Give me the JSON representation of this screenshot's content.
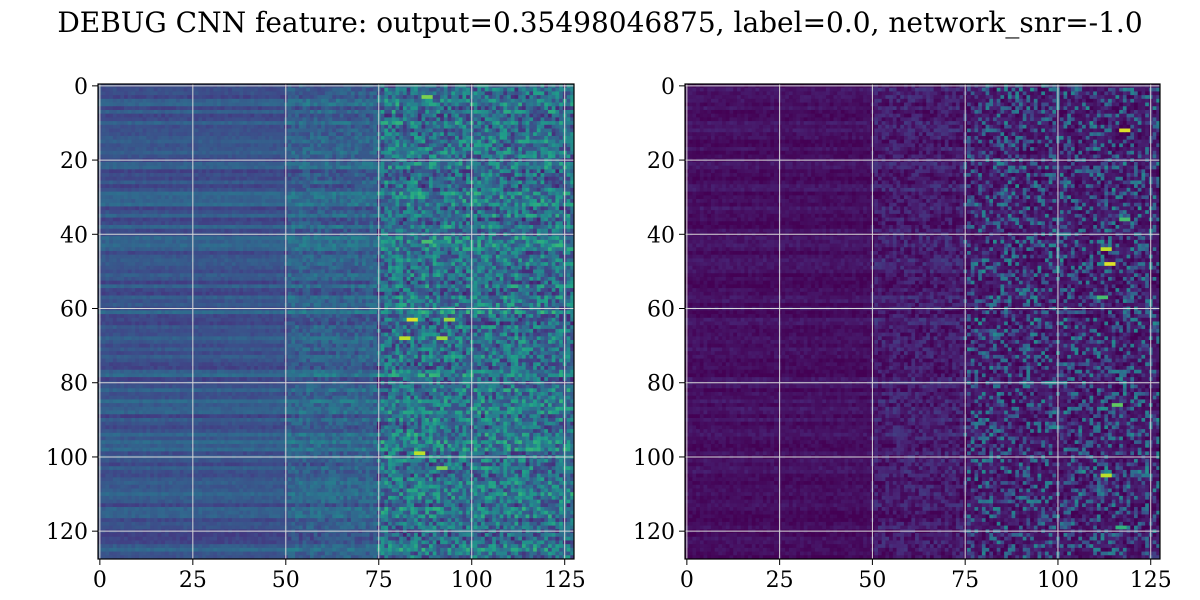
{
  "figure": {
    "title": "DEBUG CNN feature: output=0.35498046875, label=0.0, network_snr=-1.0"
  },
  "chart_data": [
    {
      "type": "heatmap",
      "colormap": "viridis",
      "rows": 128,
      "cols": 128,
      "xlim": [
        0,
        127
      ],
      "ylim": [
        127,
        0
      ],
      "y_axis_inverted": true,
      "xticks": [
        0,
        25,
        50,
        75,
        100,
        125
      ],
      "xtick_labels": [
        "0",
        "25",
        "50",
        "75",
        "100",
        "125"
      ],
      "yticks": [
        0,
        20,
        40,
        60,
        80,
        100,
        120
      ],
      "ytick_labels": [
        "0",
        "20",
        "40",
        "60",
        "80",
        "100",
        "120"
      ],
      "grid": true,
      "value_range": [
        0,
        1
      ],
      "column_band_means": [
        {
          "cols": [
            0,
            50
          ],
          "mean": 0.27
        },
        {
          "cols": [
            50,
            75
          ],
          "mean": 0.32
        },
        {
          "cols": [
            75,
            127
          ],
          "mean": 0.38
        }
      ],
      "bright_spots": [
        {
          "row": 3,
          "col": 88,
          "value": 0.8
        },
        {
          "row": 63,
          "col": 84,
          "value": 0.95
        },
        {
          "row": 63,
          "col": 94,
          "value": 0.85
        },
        {
          "row": 68,
          "col": 82,
          "value": 0.9
        },
        {
          "row": 68,
          "col": 92,
          "value": 0.85
        },
        {
          "row": 99,
          "col": 86,
          "value": 0.9
        },
        {
          "row": 103,
          "col": 92,
          "value": 0.8
        },
        {
          "row": 42,
          "col": 88,
          "value": 0.7
        }
      ]
    },
    {
      "type": "heatmap",
      "colormap": "viridis",
      "rows": 128,
      "cols": 128,
      "xlim": [
        0,
        127
      ],
      "ylim": [
        127,
        0
      ],
      "y_axis_inverted": true,
      "xticks": [
        0,
        25,
        50,
        75,
        100,
        125
      ],
      "xtick_labels": [
        "0",
        "25",
        "50",
        "75",
        "100",
        "125"
      ],
      "yticks": [
        0,
        20,
        40,
        60,
        80,
        100,
        120
      ],
      "ytick_labels": [
        "0",
        "20",
        "40",
        "60",
        "80",
        "100",
        "120"
      ],
      "grid": true,
      "value_range": [
        0,
        1
      ],
      "column_band_means": [
        {
          "cols": [
            0,
            50
          ],
          "mean": 0.04
        },
        {
          "cols": [
            50,
            75
          ],
          "mean": 0.08
        },
        {
          "cols": [
            75,
            127
          ],
          "mean": 0.2
        }
      ],
      "bright_spots": [
        {
          "row": 12,
          "col": 118,
          "value": 0.95
        },
        {
          "row": 44,
          "col": 113,
          "value": 0.9
        },
        {
          "row": 48,
          "col": 114,
          "value": 0.95
        },
        {
          "row": 36,
          "col": 118,
          "value": 0.7
        },
        {
          "row": 86,
          "col": 116,
          "value": 0.75
        },
        {
          "row": 105,
          "col": 113,
          "value": 0.9
        },
        {
          "row": 57,
          "col": 112,
          "value": 0.7
        },
        {
          "row": 119,
          "col": 117,
          "value": 0.65
        }
      ]
    }
  ],
  "colors": {
    "grid": "#d8d8d8",
    "axis": "#000000"
  }
}
